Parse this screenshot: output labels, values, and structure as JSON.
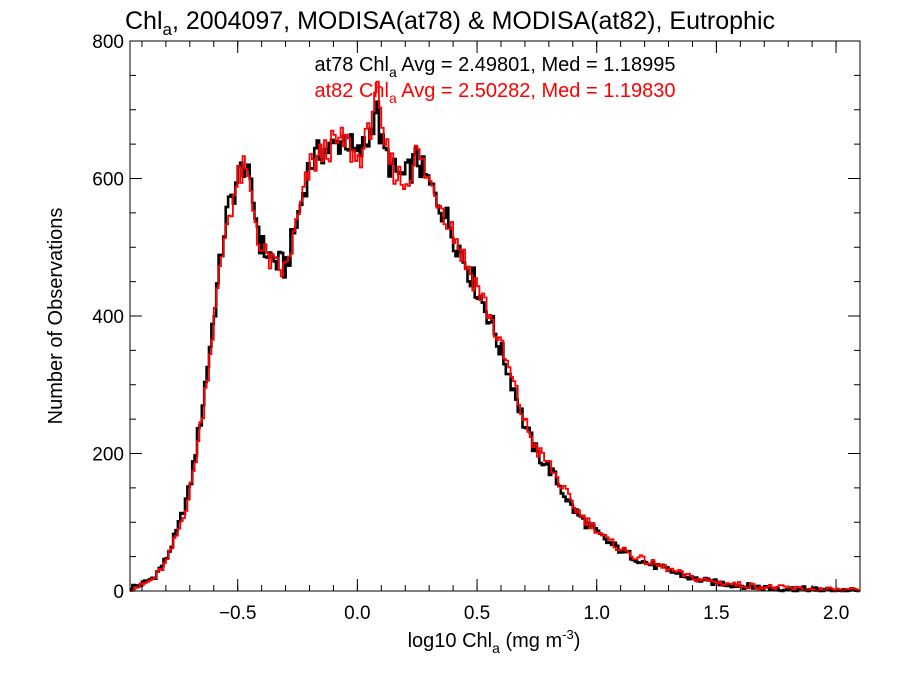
{
  "chart_data": {
    "type": "line",
    "title": {
      "pre": "Chl",
      "sub": "a",
      "post": ", 2004097, MODISA(at78) & MODISA(at82), Eutrophic"
    },
    "xlabel": {
      "pre": "log10 Chl",
      "sub": "a",
      "mid": " (mg m",
      "sup": "-3",
      "post": ")"
    },
    "ylabel": "Number of Observations",
    "xlim": [
      -0.95,
      2.1
    ],
    "ylim": [
      0,
      800
    ],
    "xticks": [
      -0.5,
      0.0,
      0.5,
      1.0,
      1.5,
      2.0
    ],
    "xtick_labels": [
      "−0.5",
      "0.0",
      "0.5",
      "1.0",
      "1.5",
      "2.0"
    ],
    "yticks": [
      0,
      200,
      400,
      600,
      800
    ],
    "ytick_labels": [
      "0",
      "200",
      "400",
      "600",
      "800"
    ],
    "grid": false,
    "colors": {
      "at78": "#000000",
      "at82": "#ff0000"
    },
    "annotations": [
      {
        "pre": "at78 Chl",
        "sub": "a",
        "post": " Avg = 2.49801, Med = 1.18995",
        "color": "#000000"
      },
      {
        "pre": "at82 Chl",
        "sub": "a",
        "post": " Avg = 2.50282, Med = 1.19830",
        "color": "#ff0000"
      }
    ],
    "x": [
      -0.95,
      -0.9,
      -0.85,
      -0.8,
      -0.75,
      -0.7,
      -0.65,
      -0.6,
      -0.55,
      -0.5,
      -0.47,
      -0.45,
      -0.42,
      -0.4,
      -0.37,
      -0.35,
      -0.3,
      -0.25,
      -0.2,
      -0.15,
      -0.1,
      -0.05,
      0.0,
      0.05,
      0.08,
      0.1,
      0.15,
      0.2,
      0.25,
      0.3,
      0.35,
      0.4,
      0.45,
      0.5,
      0.55,
      0.6,
      0.65,
      0.7,
      0.75,
      0.8,
      0.85,
      0.9,
      0.95,
      1.0,
      1.05,
      1.1,
      1.15,
      1.2,
      1.3,
      1.4,
      1.5,
      1.6,
      1.7,
      1.8,
      1.9,
      2.0,
      2.1
    ],
    "series": [
      {
        "name": "at78",
        "values": [
          5,
          10,
          20,
          45,
          90,
          150,
          260,
          400,
          540,
          600,
          625,
          590,
          540,
          500,
          490,
          480,
          470,
          540,
          620,
          640,
          645,
          660,
          630,
          660,
          710,
          650,
          610,
          600,
          630,
          590,
          560,
          520,
          480,
          440,
          400,
          350,
          300,
          240,
          200,
          180,
          150,
          120,
          100,
          85,
          70,
          60,
          50,
          42,
          30,
          18,
          12,
          8,
          5,
          3,
          2,
          1,
          0
        ]
      },
      {
        "name": "at82",
        "values": [
          3,
          8,
          18,
          40,
          85,
          140,
          250,
          390,
          530,
          595,
          615,
          585,
          530,
          490,
          485,
          470,
          465,
          535,
          615,
          635,
          650,
          655,
          625,
          665,
          745,
          660,
          615,
          590,
          640,
          595,
          565,
          525,
          480,
          445,
          405,
          355,
          305,
          245,
          205,
          185,
          155,
          125,
          105,
          90,
          72,
          62,
          52,
          44,
          32,
          19,
          13,
          9,
          6,
          4,
          2,
          1,
          0
        ]
      }
    ]
  }
}
